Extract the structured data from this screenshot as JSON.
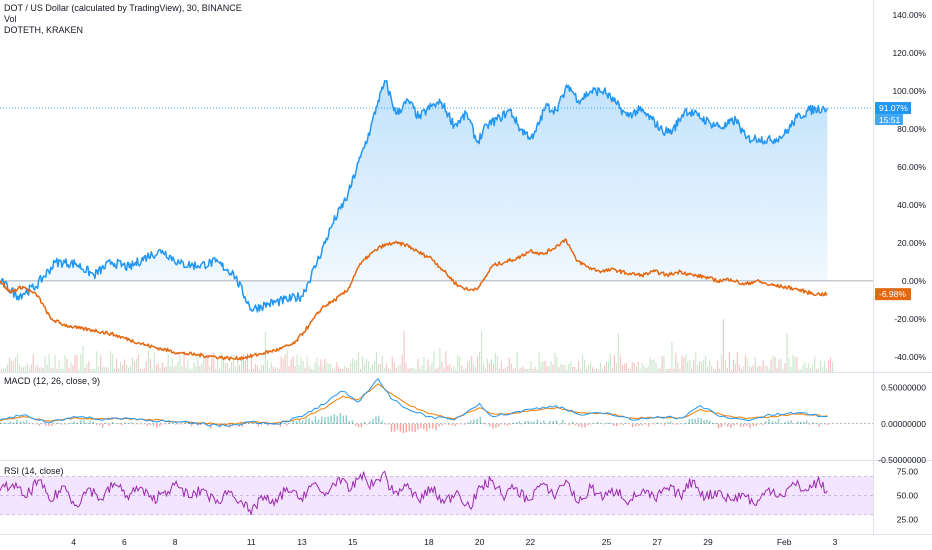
{
  "header": {
    "title": "DOT / US Dollar (calculated by TradingView), 30, BINANCE",
    "vol_label": "Vol",
    "compare_symbol": "DOTETH, KRAKEN"
  },
  "indicators": {
    "macd_label": "MACD (12, 26, close, 9)",
    "rsi_label": "RSI (14, close)"
  },
  "colors": {
    "dot_line": "#2196F3",
    "doteth_line": "#E5670F",
    "macd_line": "#2196F3",
    "signal_line": "#F57C00",
    "rsi_line": "#9C27B0",
    "rsi_band": "#F3E5FF",
    "vol_up": "#A5D6A7",
    "vol_down": "#EF9A9A"
  },
  "chart_data": [
    {
      "type": "line",
      "pane": "main",
      "y_unit": "percent change",
      "ylim": [
        -48,
        148
      ],
      "y_ticks": [
        "140.00%",
        "120.00%",
        "100.00%",
        "80.00%",
        "60.00%",
        "40.00%",
        "20.00%",
        "0.00%",
        "-20.00%",
        "-40.00%"
      ],
      "x_ticks": [
        "4",
        "6",
        "8",
        "11",
        "13",
        "15",
        "18",
        "20",
        "22",
        "25",
        "27",
        "29",
        "Feb",
        "3"
      ],
      "x_tick_positions": [
        4,
        6,
        8,
        11,
        13,
        15,
        18,
        20,
        22,
        25,
        27,
        29,
        32,
        34
      ],
      "x_range": [
        1.1,
        35.5
      ],
      "last_values": {
        "DOTUSD": "91.07%",
        "DOTETH": "-6.98%",
        "countdown": "15:51"
      },
      "series": [
        {
          "name": "DOT / US Dollar",
          "area_fill": true,
          "points": [
            [
              1.1,
              0
            ],
            [
              1.8,
              -8
            ],
            [
              2.5,
              -3
            ],
            [
              3.3,
              10
            ],
            [
              4.1,
              9
            ],
            [
              4.8,
              3
            ],
            [
              5.5,
              10
            ],
            [
              6.2,
              7
            ],
            [
              6.9,
              13
            ],
            [
              7.5,
              16
            ],
            [
              8.2,
              9
            ],
            [
              8.9,
              8
            ],
            [
              9.6,
              10
            ],
            [
              10.3,
              4
            ],
            [
              11.0,
              -15
            ],
            [
              11.7,
              -12
            ],
            [
              12.4,
              -10
            ],
            [
              13.0,
              -8
            ],
            [
              13.6,
              10
            ],
            [
              14.2,
              30
            ],
            [
              14.8,
              45
            ],
            [
              15.3,
              65
            ],
            [
              15.7,
              80
            ],
            [
              16.0,
              95
            ],
            [
              16.3,
              105
            ],
            [
              16.7,
              88
            ],
            [
              17.2,
              95
            ],
            [
              17.6,
              86
            ],
            [
              18.1,
              92
            ],
            [
              18.5,
              94
            ],
            [
              19.0,
              82
            ],
            [
              19.5,
              88
            ],
            [
              19.9,
              73
            ],
            [
              20.3,
              82
            ],
            [
              20.8,
              86
            ],
            [
              21.2,
              90
            ],
            [
              21.6,
              80
            ],
            [
              22.1,
              75
            ],
            [
              22.6,
              92
            ],
            [
              23.0,
              90
            ],
            [
              23.5,
              103
            ],
            [
              23.9,
              95
            ],
            [
              24.4,
              100
            ],
            [
              24.9,
              100
            ],
            [
              25.4,
              93
            ],
            [
              25.8,
              87
            ],
            [
              26.3,
              90
            ],
            [
              26.8,
              85
            ],
            [
              27.2,
              79
            ],
            [
              27.6,
              79
            ],
            [
              28.1,
              90
            ],
            [
              28.6,
              87
            ],
            [
              29.1,
              83
            ],
            [
              29.6,
              81
            ],
            [
              30.1,
              85
            ],
            [
              30.5,
              75
            ],
            [
              31.0,
              75
            ],
            [
              31.5,
              74
            ],
            [
              32.0,
              77
            ],
            [
              32.5,
              86
            ],
            [
              33.0,
              90
            ],
            [
              33.5,
              91
            ],
            [
              33.7,
              91.07
            ]
          ]
        },
        {
          "name": "DOTETH, KRAKEN",
          "area_fill": false,
          "points": [
            [
              1.1,
              0
            ],
            [
              1.5,
              -6
            ],
            [
              2.0,
              -3
            ],
            [
              2.6,
              -8
            ],
            [
              3.1,
              -20
            ],
            [
              3.6,
              -23
            ],
            [
              4.2,
              -25
            ],
            [
              4.8,
              -26
            ],
            [
              5.5,
              -28
            ],
            [
              6.2,
              -31
            ],
            [
              6.9,
              -34
            ],
            [
              7.5,
              -36
            ],
            [
              8.2,
              -38
            ],
            [
              8.9,
              -39
            ],
            [
              9.6,
              -40
            ],
            [
              10.3,
              -41
            ],
            [
              10.9,
              -40
            ],
            [
              11.5,
              -38
            ],
            [
              12.1,
              -36
            ],
            [
              12.7,
              -33
            ],
            [
              13.3,
              -23
            ],
            [
              13.8,
              -14
            ],
            [
              14.3,
              -10
            ],
            [
              14.8,
              -5
            ],
            [
              15.2,
              7
            ],
            [
              15.6,
              13
            ],
            [
              16.1,
              18
            ],
            [
              16.6,
              20
            ],
            [
              17.1,
              19
            ],
            [
              17.6,
              15
            ],
            [
              18.1,
              12
            ],
            [
              18.6,
              5
            ],
            [
              19.1,
              -2
            ],
            [
              19.6,
              -5
            ],
            [
              20.0,
              -3
            ],
            [
              20.5,
              8
            ],
            [
              21.0,
              10
            ],
            [
              21.5,
              12
            ],
            [
              22.0,
              16
            ],
            [
              22.5,
              14
            ],
            [
              23.0,
              18
            ],
            [
              23.4,
              22
            ],
            [
              23.8,
              11
            ],
            [
              24.3,
              7
            ],
            [
              24.8,
              5
            ],
            [
              25.3,
              6
            ],
            [
              25.8,
              4
            ],
            [
              26.4,
              3
            ],
            [
              26.9,
              5
            ],
            [
              27.4,
              3
            ],
            [
              27.9,
              5
            ],
            [
              28.4,
              3
            ],
            [
              28.9,
              2
            ],
            [
              29.4,
              0
            ],
            [
              29.9,
              1
            ],
            [
              30.4,
              -2
            ],
            [
              30.9,
              0
            ],
            [
              31.4,
              -2
            ],
            [
              31.9,
              -3
            ],
            [
              32.4,
              -4
            ],
            [
              32.9,
              -6
            ],
            [
              33.3,
              -7
            ],
            [
              33.7,
              -6.98
            ]
          ]
        }
      ]
    },
    {
      "type": "bar",
      "pane": "volume",
      "name": "Vol",
      "bars": 420,
      "note_on_values": "relative volume, unlabeled axis"
    },
    {
      "type": "line",
      "pane": "macd",
      "ylim": [
        -0.5,
        0.7
      ],
      "y_ticks": [
        "0.50000000",
        "0.00000000",
        "-0.50000000"
      ],
      "y_tick_values": [
        0.5,
        0.0,
        -0.5
      ],
      "series": [
        {
          "name": "MACD",
          "points": [
            [
              1.1,
              0.05
            ],
            [
              2.0,
              0.12
            ],
            [
              3.0,
              0.02
            ],
            [
              4.0,
              0.1
            ],
            [
              5.0,
              0.06
            ],
            [
              6.0,
              0.08
            ],
            [
              7.0,
              0.05
            ],
            [
              8.0,
              0.02
            ],
            [
              9.0,
              0.0
            ],
            [
              10.0,
              -0.03
            ],
            [
              11.0,
              0.03
            ],
            [
              12.0,
              0.0
            ],
            [
              13.0,
              0.1
            ],
            [
              14.0,
              0.3
            ],
            [
              14.6,
              0.45
            ],
            [
              15.2,
              0.3
            ],
            [
              16.0,
              0.62
            ],
            [
              16.5,
              0.35
            ],
            [
              17.2,
              0.2
            ],
            [
              18.0,
              0.1
            ],
            [
              19.0,
              0.05
            ],
            [
              20.0,
              0.28
            ],
            [
              20.5,
              0.1
            ],
            [
              21.3,
              0.15
            ],
            [
              22.0,
              0.2
            ],
            [
              23.0,
              0.25
            ],
            [
              24.0,
              0.12
            ],
            [
              25.0,
              0.15
            ],
            [
              26.0,
              0.05
            ],
            [
              27.0,
              0.1
            ],
            [
              28.0,
              0.08
            ],
            [
              28.7,
              0.25
            ],
            [
              29.5,
              0.1
            ],
            [
              30.5,
              0.05
            ],
            [
              31.5,
              0.12
            ],
            [
              32.5,
              0.15
            ],
            [
              33.7,
              0.1
            ]
          ]
        },
        {
          "name": "Signal",
          "points": [
            [
              1.1,
              0.04
            ],
            [
              2.0,
              0.1
            ],
            [
              3.0,
              0.04
            ],
            [
              4.0,
              0.08
            ],
            [
              5.0,
              0.07
            ],
            [
              6.0,
              0.07
            ],
            [
              7.0,
              0.06
            ],
            [
              8.0,
              0.03
            ],
            [
              9.0,
              0.01
            ],
            [
              10.0,
              -0.01
            ],
            [
              11.0,
              0.02
            ],
            [
              12.0,
              0.01
            ],
            [
              13.0,
              0.07
            ],
            [
              14.0,
              0.24
            ],
            [
              14.6,
              0.38
            ],
            [
              15.2,
              0.33
            ],
            [
              16.0,
              0.55
            ],
            [
              16.5,
              0.42
            ],
            [
              17.2,
              0.26
            ],
            [
              18.0,
              0.14
            ],
            [
              19.0,
              0.07
            ],
            [
              20.0,
              0.22
            ],
            [
              20.5,
              0.14
            ],
            [
              21.3,
              0.14
            ],
            [
              22.0,
              0.18
            ],
            [
              23.0,
              0.22
            ],
            [
              24.0,
              0.15
            ],
            [
              25.0,
              0.14
            ],
            [
              26.0,
              0.08
            ],
            [
              27.0,
              0.09
            ],
            [
              28.0,
              0.08
            ],
            [
              28.7,
              0.2
            ],
            [
              29.5,
              0.13
            ],
            [
              30.5,
              0.07
            ],
            [
              31.5,
              0.1
            ],
            [
              32.5,
              0.13
            ],
            [
              33.7,
              0.11
            ]
          ]
        }
      ]
    },
    {
      "type": "line",
      "pane": "rsi",
      "name": "RSI",
      "ylim": [
        10,
        85
      ],
      "y_ticks": [
        "75.00",
        "50.00",
        "25.00"
      ],
      "y_tick_values": [
        75,
        50,
        25
      ],
      "band": [
        30,
        70
      ],
      "points": [
        [
          1.1,
          55
        ],
        [
          1.6,
          62
        ],
        [
          2.1,
          48
        ],
        [
          2.6,
          66
        ],
        [
          3.1,
          44
        ],
        [
          3.6,
          60
        ],
        [
          4.1,
          40
        ],
        [
          4.6,
          58
        ],
        [
          5.1,
          46
        ],
        [
          5.6,
          63
        ],
        [
          6.1,
          50
        ],
        [
          6.6,
          58
        ],
        [
          7.1,
          45
        ],
        [
          7.6,
          55
        ],
        [
          8.1,
          60
        ],
        [
          8.6,
          48
        ],
        [
          9.1,
          57
        ],
        [
          9.6,
          42
        ],
        [
          10.1,
          55
        ],
        [
          10.6,
          45
        ],
        [
          11.0,
          30
        ],
        [
          11.4,
          50
        ],
        [
          11.9,
          40
        ],
        [
          12.4,
          58
        ],
        [
          12.9,
          46
        ],
        [
          13.4,
          62
        ],
        [
          13.9,
          50
        ],
        [
          14.4,
          68
        ],
        [
          14.9,
          55
        ],
        [
          15.3,
          72
        ],
        [
          15.8,
          60
        ],
        [
          16.2,
          74
        ],
        [
          16.6,
          52
        ],
        [
          17.1,
          60
        ],
        [
          17.6,
          45
        ],
        [
          18.1,
          58
        ],
        [
          18.6,
          42
        ],
        [
          19.1,
          55
        ],
        [
          19.6,
          38
        ],
        [
          20.1,
          60
        ],
        [
          20.5,
          66
        ],
        [
          20.9,
          50
        ],
        [
          21.4,
          58
        ],
        [
          21.9,
          45
        ],
        [
          22.4,
          62
        ],
        [
          22.9,
          50
        ],
        [
          23.4,
          66
        ],
        [
          23.9,
          42
        ],
        [
          24.4,
          58
        ],
        [
          24.9,
          48
        ],
        [
          25.4,
          56
        ],
        [
          25.9,
          44
        ],
        [
          26.4,
          55
        ],
        [
          26.9,
          46
        ],
        [
          27.4,
          58
        ],
        [
          27.9,
          50
        ],
        [
          28.4,
          66
        ],
        [
          28.9,
          48
        ],
        [
          29.4,
          55
        ],
        [
          29.9,
          45
        ],
        [
          30.4,
          52
        ],
        [
          30.9,
          40
        ],
        [
          31.4,
          58
        ],
        [
          31.9,
          50
        ],
        [
          32.4,
          62
        ],
        [
          32.9,
          55
        ],
        [
          33.3,
          65
        ],
        [
          33.7,
          55
        ]
      ]
    }
  ]
}
